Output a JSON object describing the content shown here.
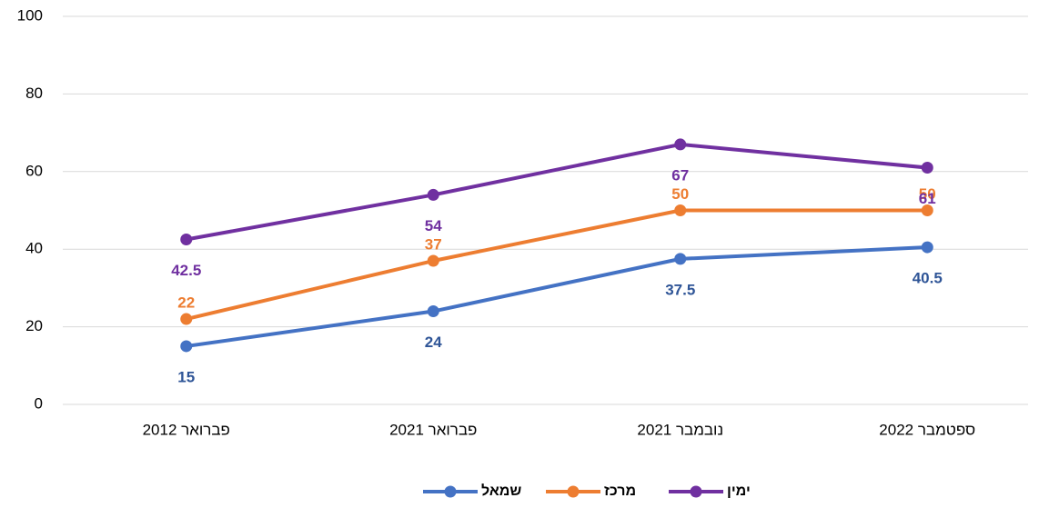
{
  "chart_data": {
    "type": "line",
    "categories": [
      "פברואר 2012",
      "פברואר 2021",
      "נובמבר 2021",
      "ספטמבר 2022"
    ],
    "series": [
      {
        "name": "שמאל",
        "color": "#4472c4",
        "label_color": "#2f5597",
        "label_position": "below",
        "values": [
          15,
          24,
          37.5,
          40.5
        ]
      },
      {
        "name": "מרכז",
        "color": "#ed7d31",
        "label_color": "#ed7d31",
        "label_position": "above",
        "values": [
          22,
          37,
          50,
          50
        ]
      },
      {
        "name": "ימין",
        "color": "#7030a0",
        "label_color": "#7030a0",
        "label_position": "below",
        "values": [
          42.5,
          54,
          67,
          61
        ]
      }
    ],
    "ylim": [
      0,
      100
    ],
    "yticks": [
      0,
      20,
      40,
      60,
      80,
      100
    ],
    "grid": true,
    "legend": "bottom"
  }
}
